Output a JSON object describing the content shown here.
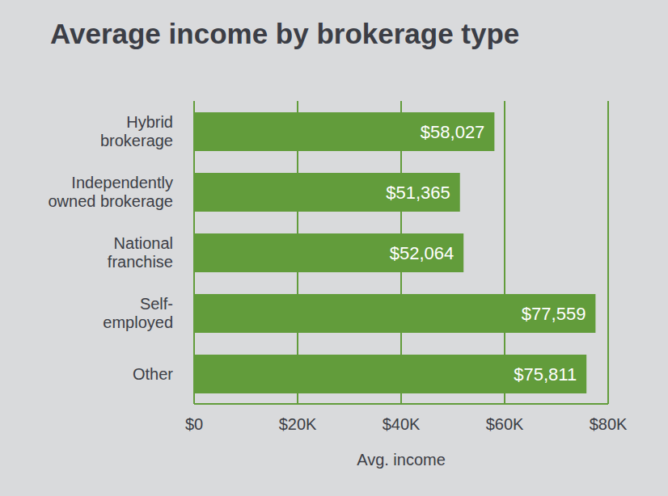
{
  "chart_data": {
    "type": "bar",
    "title": "Average income by brokerage type",
    "x_label": "Avg. income",
    "orientation": "horizontal",
    "categories": [
      "Hybrid\nbrokerage",
      "Independently\nowned brokerage",
      "National\nfranchise",
      "Self-\nemployed",
      "Other"
    ],
    "values": [
      58027,
      51365,
      52064,
      77559,
      75811
    ],
    "value_labels": [
      "$58,027",
      "$51,365",
      "$52,064",
      "$77,559",
      "$75,811"
    ],
    "data_labels": true,
    "color": "#629c3b",
    "xlim": [
      0,
      80000
    ],
    "xticks": [
      {
        "value": 0,
        "label": "$0"
      },
      {
        "value": 20000,
        "label": "$20K"
      },
      {
        "value": 40000,
        "label": "$40K"
      },
      {
        "value": 60000,
        "label": "$60K"
      },
      {
        "value": 80000,
        "label": "$80K"
      }
    ],
    "grid": true
  }
}
